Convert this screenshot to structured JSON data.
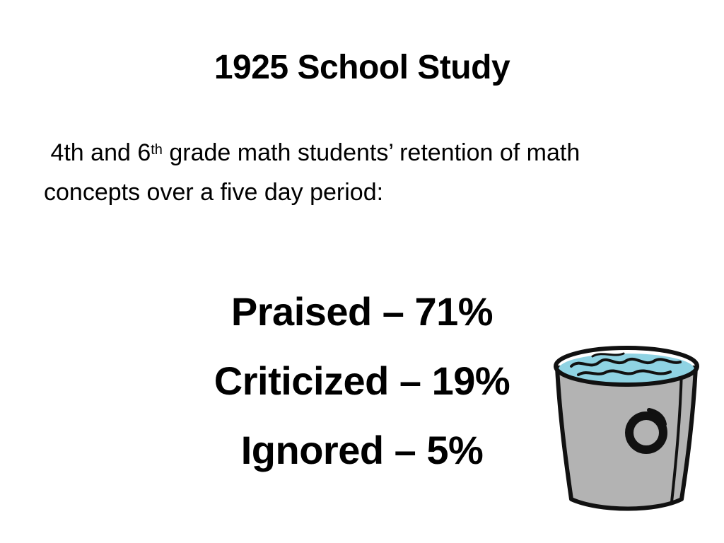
{
  "slide": {
    "title": "1925 School Study",
    "subtitle": {
      "part1": "4th and 6",
      "superscript": "th",
      "part2": " grade math students’ retention of math concepts over a five day period:"
    },
    "results": [
      {
        "label": "Praised – 71%"
      },
      {
        "label": "Criticized – 19%"
      },
      {
        "label": "Ignored – 5%"
      }
    ],
    "clipart": {
      "icon": "water-bucket-icon",
      "colors": {
        "bucket": "#b3b3b3",
        "water": "#8fd3e3",
        "outline": "#111111"
      }
    }
  }
}
